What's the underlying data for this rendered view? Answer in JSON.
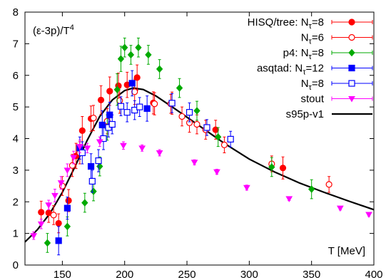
{
  "chart_data": {
    "type": "scatter",
    "ylabel": "(ε-3p)/T⁴",
    "xlabel": "T [MeV]",
    "xlim": [
      120,
      400
    ],
    "ylim": [
      0,
      8
    ],
    "xticks": [
      150,
      200,
      250,
      300,
      350,
      400
    ],
    "yticks": [
      0,
      1,
      2,
      3,
      4,
      5,
      6,
      7,
      8
    ],
    "x_tick_labels": [
      "150",
      "200",
      "250",
      "300",
      "350",
      "400"
    ],
    "y_tick_labels": [
      "0",
      "1",
      "2",
      "3",
      "4",
      "5",
      "6",
      "7",
      "8"
    ],
    "legend_position": "top-right",
    "series": [
      {
        "name": "HISQ/tree: N_τ=8",
        "legend_main": "HISQ/tree: N",
        "legend_sub": "τ",
        "legend_tail": "=8",
        "color": "#ff0000",
        "marker": "circle-filled",
        "points": [
          [
            133,
            1.67,
            0.35
          ],
          [
            139,
            1.65,
            0.3
          ],
          [
            147,
            1.32,
            0.3
          ],
          [
            155,
            2.04,
            0.35
          ],
          [
            161,
            3.45,
            0.4
          ],
          [
            166,
            4.25,
            0.45
          ],
          [
            173,
            4.63,
            0.4
          ],
          [
            181,
            5.22,
            0.45
          ],
          [
            188,
            5.5,
            0.45
          ],
          [
            195,
            5.67,
            0.4
          ],
          [
            202,
            5.7,
            0.4
          ],
          [
            210,
            5.93,
            0.4
          ],
          [
            223,
            5.13,
            0.35
          ],
          [
            238,
            5.12,
            0.35
          ],
          [
            273,
            4.28,
            0.3
          ],
          [
            327,
            3.07,
            0.35
          ]
        ]
      },
      {
        "name": "N_τ=6",
        "legend_main": "N",
        "legend_sub": "τ",
        "legend_tail": "=6",
        "color": "#ff0000",
        "marker": "circle-open",
        "points": [
          [
            143,
            1.58,
            0.3
          ],
          [
            150,
            2.5,
            0.3
          ],
          [
            158,
            3.15,
            0.35
          ],
          [
            164,
            3.55,
            0.35
          ],
          [
            175,
            4.65,
            0.4
          ],
          [
            186,
            4.55,
            0.4
          ],
          [
            196,
            5.2,
            0.4
          ],
          [
            208,
            5.48,
            0.4
          ],
          [
            224,
            5.1,
            0.35
          ],
          [
            237,
            5.1,
            0.3
          ],
          [
            246,
            4.7,
            0.3
          ],
          [
            252,
            4.5,
            0.3
          ],
          [
            258,
            4.45,
            0.3
          ],
          [
            265,
            4.28,
            0.3
          ],
          [
            280,
            3.8,
            0.25
          ],
          [
            318,
            3.2,
            0.25
          ],
          [
            364,
            2.55,
            0.25
          ]
        ]
      },
      {
        "name": "p4: N_τ=8",
        "legend_main": "p4: N",
        "legend_sub": "τ",
        "legend_tail": "=8",
        "color": "#00aa00",
        "marker": "diamond-filled",
        "points": [
          [
            138,
            0.7,
            0.3
          ],
          [
            154,
            1.22,
            0.3
          ],
          [
            168,
            1.97,
            0.3
          ],
          [
            175,
            2.33,
            0.3
          ],
          [
            180,
            3.12,
            0.3
          ],
          [
            186,
            4.35,
            0.4
          ],
          [
            194,
            5.55,
            0.5
          ],
          [
            197,
            6.52,
            0.4
          ],
          [
            200,
            6.88,
            0.3
          ],
          [
            205,
            6.65,
            0.3
          ],
          [
            211,
            6.88,
            0.3
          ],
          [
            219,
            6.65,
            0.3
          ],
          [
            228,
            6.2,
            0.3
          ],
          [
            244,
            5.6,
            0.3
          ],
          [
            258,
            4.88,
            0.3
          ],
          [
            275,
            4.05,
            0.3
          ],
          [
            318,
            3.1,
            0.3
          ],
          [
            350,
            2.4,
            0.3
          ]
        ]
      },
      {
        "name": "asqtad: N_τ=12",
        "legend_main": "asqtad: N",
        "legend_sub": "τ",
        "legend_tail": "=12",
        "color": "#0000ff",
        "marker": "square-filled",
        "points": [
          [
            147,
            0.77,
            0.45
          ],
          [
            154,
            1.8,
            0.35
          ],
          [
            164,
            3.7,
            0.35
          ],
          [
            173,
            3.12,
            0.4
          ],
          [
            182,
            4.43,
            0.45
          ],
          [
            188,
            4.75,
            0.4
          ],
          [
            206,
            5.75,
            0.4
          ],
          [
            218,
            4.95,
            0.4
          ]
        ]
      },
      {
        "name": "N_τ=8",
        "legend_main": "N",
        "legend_sub": "τ",
        "legend_tail": "=8",
        "color": "#0000ff",
        "marker": "square-open",
        "points": [
          [
            166,
            3.55,
            0.35
          ],
          [
            174,
            2.65,
            0.35
          ],
          [
            179,
            3.3,
            0.35
          ],
          [
            183,
            4.0,
            0.35
          ],
          [
            187,
            4.35,
            0.3
          ],
          [
            190,
            4.45,
            0.3
          ],
          [
            197,
            5.02,
            0.3
          ],
          [
            202,
            4.83,
            0.3
          ],
          [
            208,
            4.9,
            0.3
          ],
          [
            212,
            5.0,
            0.3
          ],
          [
            238,
            5.12,
            0.3
          ],
          [
            252,
            4.83,
            0.3
          ],
          [
            266,
            4.35,
            0.25
          ],
          [
            285,
            3.98,
            0.25
          ]
        ]
      },
      {
        "name": "stout",
        "legend_main": "stout",
        "legend_sub": "",
        "legend_tail": "",
        "color": "#ff00ff",
        "marker": "triangle-down",
        "points": [
          [
            127,
            0.93,
            0.12
          ],
          [
            133,
            1.3,
            0.15
          ],
          [
            139,
            1.9,
            0.15
          ],
          [
            144,
            2.2,
            0.2
          ],
          [
            149,
            2.6,
            0.2
          ],
          [
            154,
            3.0,
            0.2
          ],
          [
            159,
            3.4,
            0.2
          ],
          [
            164,
            3.75,
            0.2
          ],
          [
            170,
            3.7,
            0.15
          ],
          [
            180,
            3.9,
            0.15
          ],
          [
            199,
            3.78,
            0.12
          ],
          [
            214,
            3.7,
            0.1
          ],
          [
            228,
            3.55,
            0.1
          ],
          [
            256,
            3.25,
            0.08
          ],
          [
            274,
            2.95,
            0.08
          ],
          [
            298,
            2.45,
            0.08
          ],
          [
            332,
            2.1,
            0.06
          ],
          [
            373,
            1.8,
            0.06
          ],
          [
            396,
            1.6,
            0.05
          ]
        ]
      }
    ],
    "curve": {
      "name": "s95p-v1",
      "legend_main": "s95p-v1",
      "legend_sub": "",
      "legend_tail": "",
      "color": "#000000",
      "points": [
        [
          120,
          0.73
        ],
        [
          130,
          1.12
        ],
        [
          140,
          1.63
        ],
        [
          150,
          2.3
        ],
        [
          160,
          3.1
        ],
        [
          170,
          3.95
        ],
        [
          180,
          4.7
        ],
        [
          190,
          5.22
        ],
        [
          200,
          5.52
        ],
        [
          207,
          5.6
        ],
        [
          215,
          5.55
        ],
        [
          225,
          5.35
        ],
        [
          240,
          4.95
        ],
        [
          260,
          4.4
        ],
        [
          280,
          3.85
        ],
        [
          300,
          3.35
        ],
        [
          320,
          2.95
        ],
        [
          340,
          2.6
        ],
        [
          360,
          2.3
        ],
        [
          380,
          2.02
        ],
        [
          400,
          1.75
        ]
      ]
    }
  }
}
